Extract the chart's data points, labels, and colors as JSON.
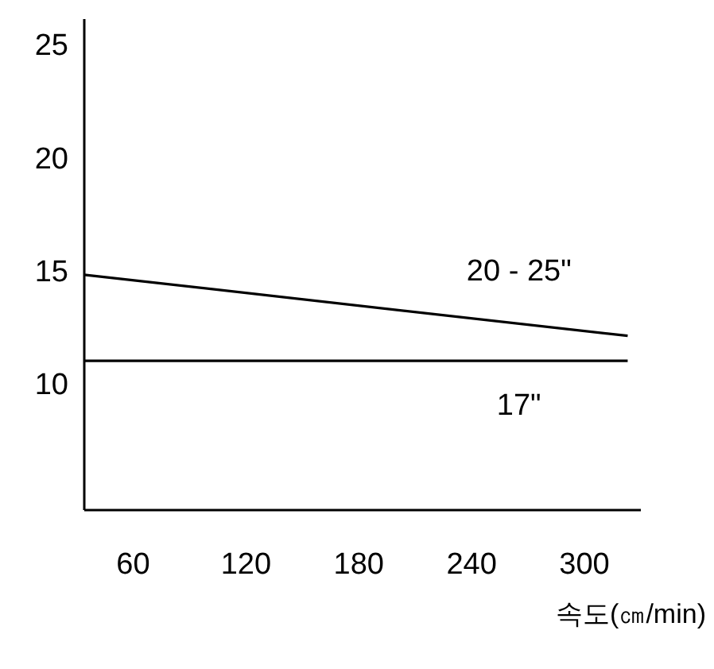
{
  "chart_data": {
    "type": "line",
    "xlabel": "속도(㎝/min)",
    "xlim": [
      34,
      330
    ],
    "ylim": [
      4.5,
      26.2
    ],
    "xticks": [
      60,
      120,
      180,
      240,
      300
    ],
    "yticks": [
      10,
      15,
      20,
      25
    ],
    "x": [
      34,
      323
    ],
    "series": [
      {
        "name": "20 - 25\"",
        "color": "#000000",
        "values": [
          14.9,
          12.2
        ]
      },
      {
        "name": "17\"",
        "color": "#000000",
        "values": [
          11.1,
          11.1
        ]
      }
    ]
  }
}
